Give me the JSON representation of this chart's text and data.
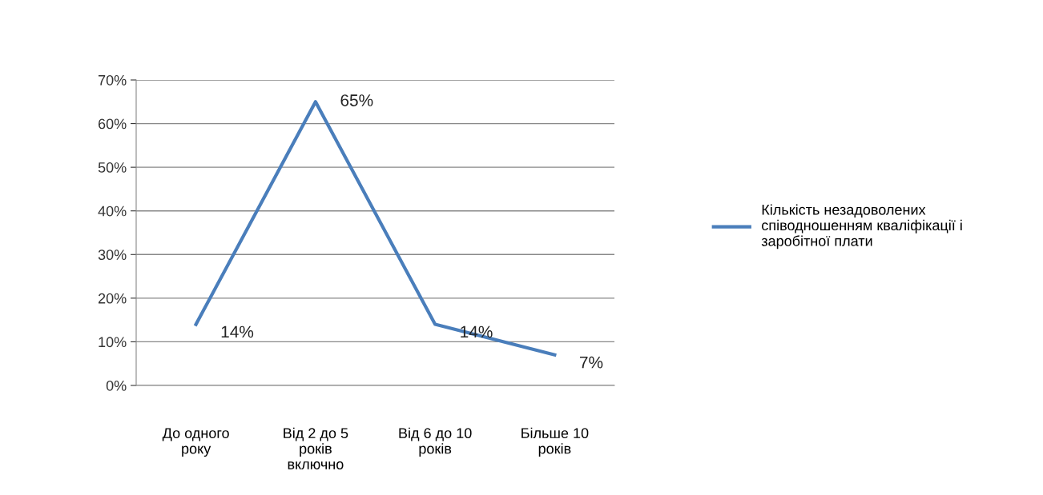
{
  "chart_data": {
    "type": "line",
    "categories": [
      "До одного року",
      "Від 2 до 5 років включно",
      "Від 6 до 10 років",
      "Більше 10 років"
    ],
    "series": [
      {
        "name": "Кількість незадоволених співодношенням кваліфікації і заробітної плати",
        "color": "#4a7ebb",
        "values": [
          14,
          65,
          14,
          7
        ],
        "value_labels": [
          "14%",
          "65%",
          "14%",
          "7%"
        ]
      }
    ],
    "ylim": [
      0,
      70
    ],
    "yticks": [
      {
        "value": 0,
        "label": "0%"
      },
      {
        "value": 10,
        "label": "10%"
      },
      {
        "value": 20,
        "label": "20%"
      },
      {
        "value": 30,
        "label": "30%"
      },
      {
        "value": 40,
        "label": "40%"
      },
      {
        "value": 50,
        "label": "50%"
      },
      {
        "value": 60,
        "label": "60%"
      },
      {
        "value": 70,
        "label": "70%"
      }
    ],
    "grid": "y",
    "legend": "right",
    "marker": "none",
    "line_style": "solid"
  }
}
